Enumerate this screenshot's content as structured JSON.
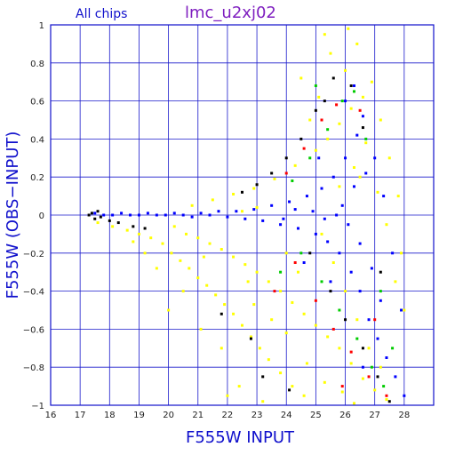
{
  "chart_data": {
    "type": "scatter",
    "title": "lmc_u2xj02",
    "subtitle": "All chips",
    "xlabel": "F555W INPUT",
    "ylabel": "F555W (OBS−INPUT)",
    "xlim": [
      16,
      29
    ],
    "ylim": [
      -1,
      1
    ],
    "x_ticks": [
      16,
      17,
      18,
      19,
      20,
      21,
      22,
      23,
      24,
      25,
      26,
      27,
      28
    ],
    "y_ticks": [
      -1,
      -0.8,
      -0.6,
      -0.4,
      -0.2,
      0,
      0.2,
      0.4,
      0.6,
      0.8,
      1
    ],
    "y_tick_labels": [
      "−1",
      "−0.8",
      "−0.6",
      "−0.4",
      "−0.2",
      "0",
      "0.2",
      "0.4",
      "0.6",
      "0.8",
      "1"
    ],
    "grid": true,
    "series": [
      {
        "color": "#ffff00",
        "points": [
          [
            17.6,
            -0.04
          ],
          [
            18.1,
            -0.06
          ],
          [
            18.6,
            -0.08
          ],
          [
            19.0,
            -0.1
          ],
          [
            19.4,
            -0.12
          ],
          [
            19.8,
            -0.15
          ],
          [
            20.1,
            -0.2
          ],
          [
            20.4,
            -0.24
          ],
          [
            20.7,
            -0.28
          ],
          [
            21.0,
            -0.33
          ],
          [
            21.3,
            -0.37
          ],
          [
            21.6,
            -0.42
          ],
          [
            21.9,
            -0.47
          ],
          [
            22.2,
            -0.52
          ],
          [
            22.5,
            -0.58
          ],
          [
            22.8,
            -0.64
          ],
          [
            23.1,
            -0.7
          ],
          [
            23.4,
            -0.76
          ],
          [
            23.8,
            -0.83
          ],
          [
            24.2,
            -0.9
          ],
          [
            24.6,
            -0.95
          ],
          [
            20.2,
            -0.06
          ],
          [
            20.6,
            -0.1
          ],
          [
            21.0,
            -0.12
          ],
          [
            21.4,
            -0.15
          ],
          [
            21.8,
            -0.18
          ],
          [
            22.2,
            -0.22
          ],
          [
            22.6,
            -0.26
          ],
          [
            23.0,
            -0.3
          ],
          [
            23.4,
            -0.35
          ],
          [
            23.8,
            -0.4
          ],
          [
            24.2,
            -0.46
          ],
          [
            24.6,
            -0.52
          ],
          [
            25.0,
            -0.58
          ],
          [
            25.4,
            -0.64
          ],
          [
            25.8,
            -0.7
          ],
          [
            26.2,
            -0.78
          ],
          [
            26.6,
            -0.86
          ],
          [
            27.0,
            -0.92
          ],
          [
            27.4,
            -0.97
          ],
          [
            20.8,
            0.05
          ],
          [
            21.5,
            0.08
          ],
          [
            22.2,
            0.11
          ],
          [
            22.9,
            0.14
          ],
          [
            23.6,
            0.19
          ],
          [
            24.3,
            0.26
          ],
          [
            25.0,
            0.34
          ],
          [
            25.4,
            0.4
          ],
          [
            25.8,
            0.48
          ],
          [
            26.2,
            0.56
          ],
          [
            26.6,
            0.62
          ],
          [
            25.5,
            0.85
          ],
          [
            26.0,
            0.76
          ],
          [
            26.4,
            0.9
          ],
          [
            26.9,
            0.7
          ],
          [
            27.2,
            0.5
          ],
          [
            27.5,
            0.3
          ],
          [
            27.8,
            0.1
          ],
          [
            27.9,
            -0.2
          ],
          [
            28.0,
            -0.5
          ],
          [
            21.1,
            -0.6
          ],
          [
            21.8,
            -0.7
          ],
          [
            22.4,
            -0.9
          ],
          [
            20.5,
            -0.4
          ],
          [
            19.6,
            -0.28
          ],
          [
            20.0,
            -0.5
          ],
          [
            22.0,
            -0.95
          ],
          [
            23.2,
            -0.98
          ],
          [
            24.0,
            -0.2
          ],
          [
            24.4,
            -0.3
          ],
          [
            25.2,
            -0.1
          ],
          [
            25.6,
            -0.25
          ],
          [
            26.0,
            -0.4
          ],
          [
            26.4,
            -0.55
          ],
          [
            26.8,
            -0.7
          ],
          [
            27.2,
            -0.8
          ],
          [
            23.5,
            -0.55
          ],
          [
            22.7,
            -0.35
          ],
          [
            21.2,
            -0.22
          ],
          [
            25.8,
            0.15
          ],
          [
            26.3,
            0.25
          ],
          [
            26.7,
            0.38
          ],
          [
            27.1,
            0.12
          ],
          [
            27.4,
            -0.05
          ],
          [
            27.7,
            -0.35
          ],
          [
            24.8,
            0.5
          ],
          [
            25.1,
            0.62
          ],
          [
            24.5,
            0.72
          ],
          [
            25.3,
            0.95
          ],
          [
            26.1,
            0.98
          ],
          [
            26.5,
            0.2
          ],
          [
            19.2,
            -0.2
          ],
          [
            18.8,
            -0.14
          ],
          [
            22.9,
            -0.47
          ],
          [
            24.0,
            -0.62
          ],
          [
            24.7,
            -0.78
          ],
          [
            25.3,
            -0.88
          ],
          [
            25.9,
            -0.93
          ],
          [
            26.3,
            -0.99
          ],
          [
            23.0,
            0.04
          ],
          [
            22.5,
            0.02
          ]
        ]
      },
      {
        "color": "#0000ff",
        "points": [
          [
            17.5,
            0.01
          ],
          [
            17.8,
            0.0
          ],
          [
            18.1,
            0.0
          ],
          [
            18.4,
            0.01
          ],
          [
            18.7,
            0.0
          ],
          [
            19.0,
            0.0
          ],
          [
            19.3,
            0.01
          ],
          [
            19.6,
            0.0
          ],
          [
            19.9,
            0.0
          ],
          [
            20.2,
            0.01
          ],
          [
            20.5,
            0.0
          ],
          [
            20.8,
            -0.01
          ],
          [
            21.1,
            0.01
          ],
          [
            21.4,
            0.0
          ],
          [
            21.7,
            0.02
          ],
          [
            22.0,
            -0.01
          ],
          [
            22.3,
            0.02
          ],
          [
            22.6,
            -0.02
          ],
          [
            22.9,
            0.03
          ],
          [
            23.2,
            -0.03
          ],
          [
            23.5,
            0.05
          ],
          [
            23.8,
            -0.05
          ],
          [
            24.1,
            0.07
          ],
          [
            24.4,
            -0.07
          ],
          [
            24.7,
            0.1
          ],
          [
            25.0,
            -0.1
          ],
          [
            25.2,
            0.14
          ],
          [
            25.4,
            -0.14
          ],
          [
            25.6,
            0.2
          ],
          [
            25.8,
            -0.2
          ],
          [
            26.0,
            0.3
          ],
          [
            26.2,
            -0.3
          ],
          [
            26.4,
            0.42
          ],
          [
            26.5,
            -0.4
          ],
          [
            26.6,
            0.52
          ],
          [
            26.8,
            -0.55
          ],
          [
            27.0,
            0.3
          ],
          [
            27.1,
            -0.65
          ],
          [
            27.3,
            0.1
          ],
          [
            27.4,
            -0.75
          ],
          [
            27.6,
            -0.2
          ],
          [
            27.7,
            -0.85
          ],
          [
            27.9,
            -0.5
          ],
          [
            28.0,
            -0.95
          ],
          [
            25.9,
            0.05
          ],
          [
            26.1,
            -0.05
          ],
          [
            26.3,
            0.15
          ],
          [
            26.5,
            -0.15
          ],
          [
            26.7,
            0.22
          ],
          [
            26.9,
            -0.28
          ],
          [
            24.9,
            0.02
          ],
          [
            25.3,
            -0.02
          ],
          [
            25.7,
            0.0
          ],
          [
            24.3,
            0.03
          ],
          [
            23.9,
            -0.02
          ],
          [
            26.0,
            0.6
          ],
          [
            26.3,
            0.68
          ],
          [
            26.6,
            -0.8
          ],
          [
            27.2,
            -0.45
          ],
          [
            25.5,
            -0.35
          ],
          [
            25.1,
            0.3
          ],
          [
            24.6,
            -0.25
          ]
        ]
      },
      {
        "color": "#00cc00",
        "points": [
          [
            24.2,
            0.18
          ],
          [
            24.8,
            0.3
          ],
          [
            25.4,
            0.45
          ],
          [
            25.9,
            0.6
          ],
          [
            26.3,
            0.65
          ],
          [
            24.5,
            -0.2
          ],
          [
            25.2,
            -0.35
          ],
          [
            25.8,
            -0.5
          ],
          [
            26.4,
            -0.65
          ],
          [
            26.9,
            -0.8
          ],
          [
            27.3,
            -0.9
          ],
          [
            23.8,
            -0.3
          ],
          [
            26.7,
            0.4
          ],
          [
            27.2,
            -0.4
          ],
          [
            27.6,
            -0.7
          ],
          [
            25.0,
            0.68
          ]
        ]
      },
      {
        "color": "#ff0000",
        "points": [
          [
            24.0,
            0.22
          ],
          [
            24.6,
            0.35
          ],
          [
            25.2,
            0.5
          ],
          [
            25.7,
            0.58
          ],
          [
            24.3,
            -0.25
          ],
          [
            25.0,
            -0.45
          ],
          [
            25.6,
            -0.6
          ],
          [
            26.2,
            -0.72
          ],
          [
            26.8,
            -0.85
          ],
          [
            27.4,
            -0.95
          ],
          [
            26.5,
            0.55
          ],
          [
            27.0,
            -0.55
          ],
          [
            23.6,
            -0.4
          ],
          [
            25.9,
            -0.9
          ]
        ]
      },
      {
        "color": "#000000",
        "points": [
          [
            17.3,
            0.0
          ],
          [
            17.4,
            0.01
          ],
          [
            17.5,
            -0.02
          ],
          [
            17.6,
            0.02
          ],
          [
            17.7,
            -0.01
          ],
          [
            18.0,
            -0.03
          ],
          [
            18.3,
            -0.04
          ],
          [
            18.8,
            -0.06
          ],
          [
            19.2,
            -0.07
          ],
          [
            22.5,
            0.12
          ],
          [
            23.0,
            0.16
          ],
          [
            23.5,
            0.22
          ],
          [
            24.0,
            0.3
          ],
          [
            24.5,
            0.4
          ],
          [
            25.0,
            0.55
          ],
          [
            25.3,
            0.6
          ],
          [
            25.6,
            0.72
          ],
          [
            24.8,
            -0.2
          ],
          [
            25.5,
            -0.4
          ],
          [
            26.0,
            -0.55
          ],
          [
            26.6,
            -0.7
          ],
          [
            27.1,
            -0.85
          ],
          [
            27.5,
            -0.98
          ],
          [
            23.2,
            -0.85
          ],
          [
            24.1,
            -0.92
          ],
          [
            22.8,
            -0.65
          ],
          [
            21.8,
            -0.52
          ],
          [
            26.2,
            0.68
          ],
          [
            26.6,
            0.46
          ],
          [
            27.2,
            -0.3
          ]
        ]
      }
    ]
  }
}
